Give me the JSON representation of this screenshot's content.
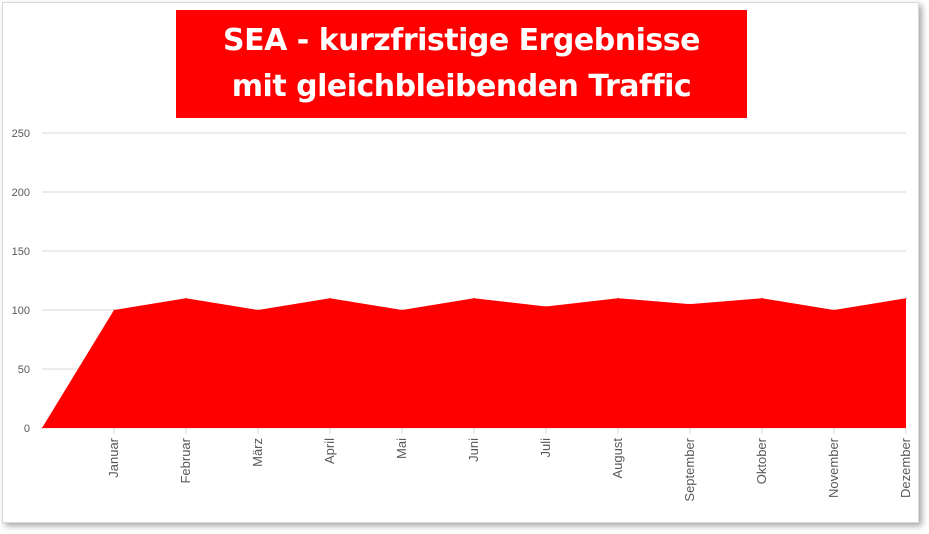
{
  "chart_data": {
    "type": "area",
    "title": "SEA - kurzfristige Ergebnisse mit gleichbleibenden Traffic",
    "categories": [
      "",
      "Januar",
      "Februar",
      "März",
      "April",
      "Mai",
      "Juni",
      "Juli",
      "August",
      "September",
      "Oktober",
      "November",
      "Dezember"
    ],
    "series": [
      {
        "values": [
          0,
          100,
          110,
          100,
          110,
          100,
          110,
          103,
          110,
          105,
          110,
          100,
          110
        ],
        "color": "#ff0000"
      }
    ],
    "ylim": [
      0,
      250
    ],
    "yticks": [
      0,
      50,
      100,
      150,
      200,
      250
    ],
    "grid": true,
    "legend": "none"
  }
}
